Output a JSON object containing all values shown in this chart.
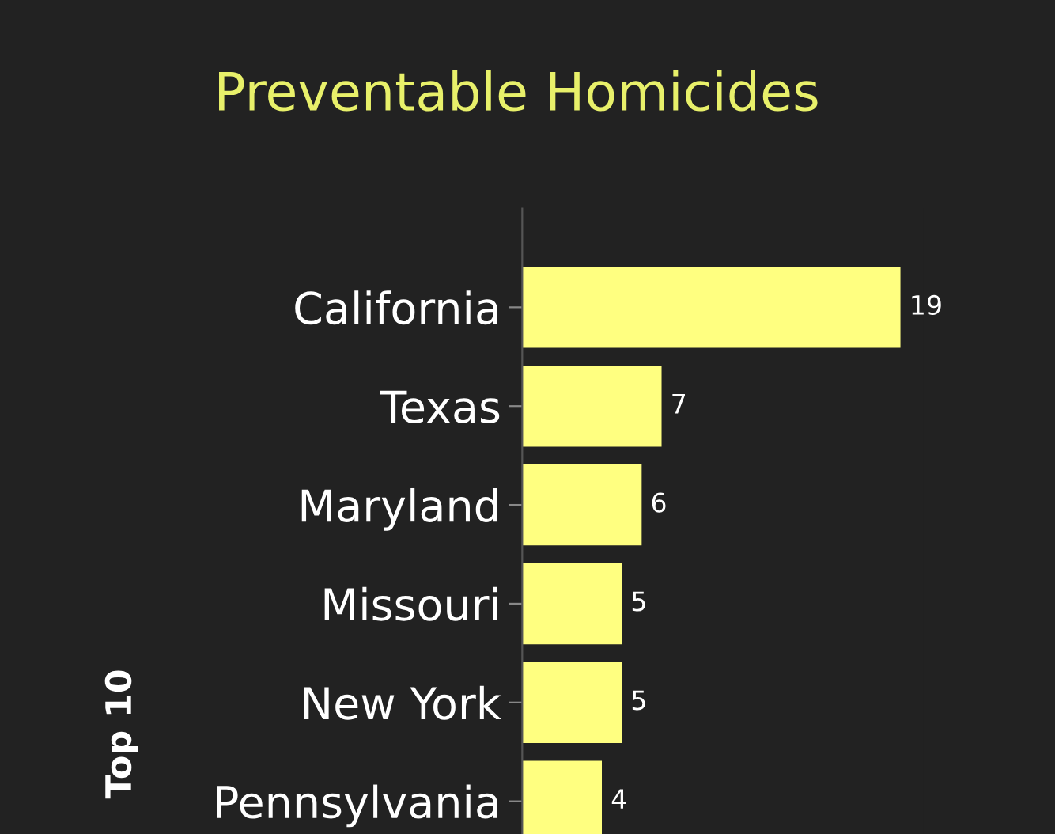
{
  "chart_data": {
    "type": "bar",
    "orientation": "horizontal",
    "title": "Preventable Homicides",
    "ylabel": "Top 10",
    "categories": [
      "California",
      "Texas",
      "Maryland",
      "Missouri",
      "New York",
      "Pennsylvania"
    ],
    "values": [
      19,
      7,
      6,
      5,
      5,
      4
    ],
    "color": "#ffff80",
    "data_labels": true,
    "tick_labels": "y"
  }
}
